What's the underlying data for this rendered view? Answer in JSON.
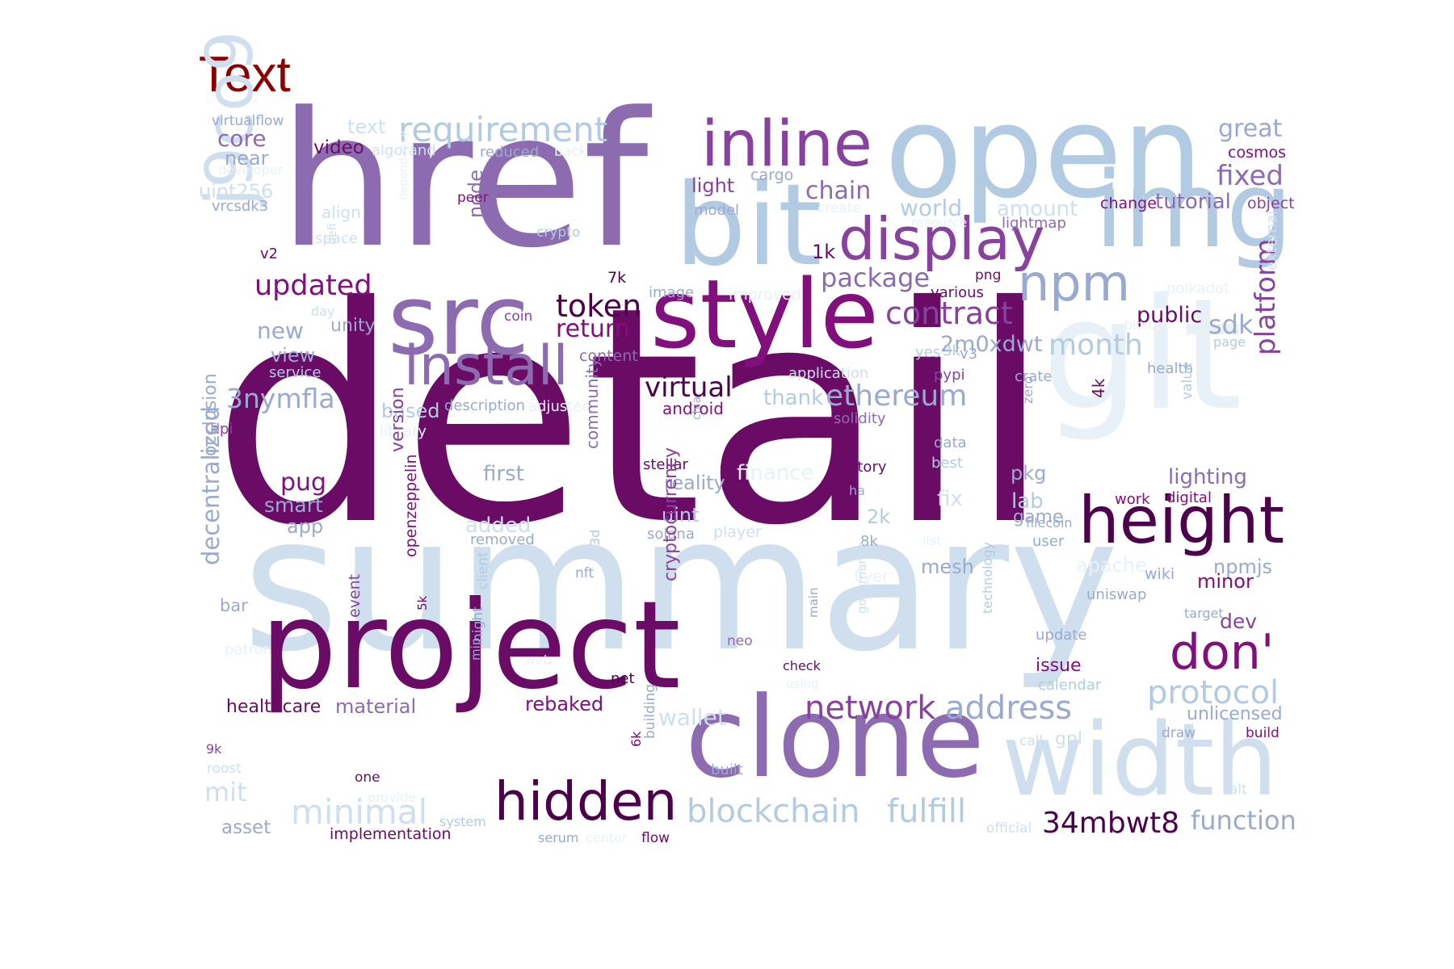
{
  "title": "Text",
  "palette": {
    "title": "#8b0000",
    "c1": "#e8f1f8",
    "c2": "#cfdfee",
    "c3": "#b3cbe2",
    "c4": "#9aa9d0",
    "c5": "#8c6bb1",
    "c6": "#88419d",
    "c7": "#810f7c",
    "c8": "#6a0c66",
    "c9": "#4d004b"
  },
  "words": [
    {
      "text": "detail",
      "color": "c8"
    },
    {
      "text": "summary",
      "color": "c2"
    },
    {
      "text": "href",
      "color": "c5"
    },
    {
      "text": "open",
      "color": "c3"
    },
    {
      "text": "git",
      "color": "c1"
    },
    {
      "text": "img",
      "color": "c3"
    },
    {
      "text": "project",
      "color": "c8"
    },
    {
      "text": "clone",
      "color": "c5"
    },
    {
      "text": "width",
      "color": "c2"
    },
    {
      "text": "style",
      "color": "c7"
    },
    {
      "text": "bit",
      "color": "c3"
    },
    {
      "text": "inline",
      "color": "c6"
    },
    {
      "text": "src",
      "color": "c5"
    },
    {
      "text": "display",
      "color": "c6"
    },
    {
      "text": "height",
      "color": "c9"
    },
    {
      "text": "install",
      "color": "c5"
    },
    {
      "text": "hidden",
      "color": "c9"
    },
    {
      "text": "requirement",
      "color": "c3"
    },
    {
      "text": "j9co9",
      "color": "c2"
    },
    {
      "text": "npm",
      "color": "c4"
    },
    {
      "text": "don'",
      "color": "c7"
    },
    {
      "text": "network",
      "color": "c6"
    },
    {
      "text": "address",
      "color": "c4"
    },
    {
      "text": "protocol",
      "color": "c3"
    },
    {
      "text": "blockchain",
      "color": "c3"
    },
    {
      "text": "fulfill",
      "color": "c3"
    },
    {
      "text": "34mbwt8",
      "color": "c9"
    },
    {
      "text": "function",
      "color": "c4"
    },
    {
      "text": "minimal",
      "color": "c2"
    },
    {
      "text": "contract",
      "color": "c6"
    },
    {
      "text": "ethereum",
      "color": "c4"
    },
    {
      "text": "token",
      "color": "c9"
    },
    {
      "text": "return",
      "color": "c7"
    },
    {
      "text": "updated",
      "color": "c7"
    },
    {
      "text": "package",
      "color": "c5"
    },
    {
      "text": "month",
      "color": "c3"
    },
    {
      "text": "platform",
      "color": "c6"
    },
    {
      "text": "fixed",
      "color": "c5"
    },
    {
      "text": "great",
      "color": "c4"
    },
    {
      "text": "tutorial",
      "color": "c5"
    },
    {
      "text": "sdk",
      "color": "c4"
    },
    {
      "text": "public",
      "color": "c8"
    },
    {
      "text": "virtual",
      "color": "c9"
    },
    {
      "text": "android",
      "color": "c7"
    },
    {
      "text": "core",
      "color": "c5"
    },
    {
      "text": "near",
      "color": "c4"
    },
    {
      "text": "virtualflow",
      "color": "c4"
    },
    {
      "text": "video",
      "color": "c8"
    },
    {
      "text": "algorand",
      "color": "c2"
    },
    {
      "text": "reduced",
      "color": "c4"
    },
    {
      "text": "back",
      "color": "c1"
    },
    {
      "text": "text",
      "color": "c2"
    },
    {
      "text": "developer",
      "color": "c1"
    },
    {
      "text": "uint256",
      "color": "c2"
    },
    {
      "text": "vrcsdk3",
      "color": "c4"
    },
    {
      "text": "align",
      "color": "c2"
    },
    {
      "text": "space",
      "color": "c2"
    },
    {
      "text": "v2",
      "color": "c8"
    },
    {
      "text": "defi",
      "color": "c2"
    },
    {
      "text": "dependency",
      "color": "c1"
    },
    {
      "text": "node",
      "color": "c5"
    },
    {
      "text": "peer",
      "color": "c7"
    },
    {
      "text": "crypto",
      "color": "c3"
    },
    {
      "text": "light",
      "color": "c6"
    },
    {
      "text": "cargo",
      "color": "c4"
    },
    {
      "text": "chain",
      "color": "c5"
    },
    {
      "text": "model",
      "color": "c4"
    },
    {
      "text": "create",
      "color": "c1"
    },
    {
      "text": "world",
      "color": "c3"
    },
    {
      "text": "amount",
      "color": "c2"
    },
    {
      "text": "resource",
      "color": "c1"
    },
    {
      "text": "lightmap",
      "color": "c5"
    },
    {
      "text": "change",
      "color": "c7"
    },
    {
      "text": "object",
      "color": "c6"
    },
    {
      "text": "cosmos",
      "color": "c7"
    },
    {
      "text": "1k",
      "color": "c8"
    },
    {
      "text": "7k",
      "color": "c9"
    },
    {
      "text": "png",
      "color": "c8"
    },
    {
      "text": "image",
      "color": "c4"
    },
    {
      "text": "improved",
      "color": "c1"
    },
    {
      "text": "various",
      "color": "c8"
    },
    {
      "text": "polkadot",
      "color": "c1"
    },
    {
      "text": "coin",
      "color": "c6"
    },
    {
      "text": "day",
      "color": "c2"
    },
    {
      "text": "unity",
      "color": "c4"
    },
    {
      "text": "new",
      "color": "c4"
    },
    {
      "text": "view",
      "color": "c4"
    },
    {
      "text": "service",
      "color": "c3"
    },
    {
      "text": "content",
      "color": "c5"
    },
    {
      "text": "2m0xdwt",
      "color": "c4"
    },
    {
      "text": "yes",
      "color": "c3"
    },
    {
      "text": "3k",
      "color": "c3"
    },
    {
      "text": "v3",
      "color": "c4"
    },
    {
      "text": "bitcoin",
      "color": "c1"
    },
    {
      "text": "page",
      "color": "c3"
    },
    {
      "text": "external",
      "color": "c2"
    },
    {
      "text": "application",
      "color": "c2"
    },
    {
      "text": "pypi",
      "color": "c6"
    },
    {
      "text": "crate",
      "color": "c4"
    },
    {
      "text": "health",
      "color": "c4"
    },
    {
      "text": "3nymfla",
      "color": "c4"
    },
    {
      "text": "based",
      "color": "c3"
    },
    {
      "text": "description",
      "color": "c4"
    },
    {
      "text": "adjusted",
      "color": "c1"
    },
    {
      "text": "thank",
      "color": "c3"
    },
    {
      "text": "solidity",
      "color": "c5"
    },
    {
      "text": "zero",
      "color": "c4"
    },
    {
      "text": "4k",
      "color": "c8"
    },
    {
      "text": "value",
      "color": "c3"
    },
    {
      "text": "api",
      "color": "c6"
    },
    {
      "text": "library",
      "color": "c1"
    },
    {
      "text": "chia",
      "color": "c4"
    },
    {
      "text": "data",
      "color": "c4"
    },
    {
      "text": "best",
      "color": "c3"
    },
    {
      "text": "occlusion",
      "color": "c4"
    },
    {
      "text": "version",
      "color": "c6"
    },
    {
      "text": "pug",
      "color": "c7"
    },
    {
      "text": "smart",
      "color": "c4"
    },
    {
      "text": "app",
      "color": "c4"
    },
    {
      "text": "first",
      "color": "c4"
    },
    {
      "text": "stellar",
      "color": "c8"
    },
    {
      "text": "community",
      "color": "c5"
    },
    {
      "text": "reality",
      "color": "c4"
    },
    {
      "text": "finance",
      "color": "c1"
    },
    {
      "text": "story",
      "color": "c8"
    },
    {
      "text": "ha",
      "color": "c4"
    },
    {
      "text": "pkg",
      "color": "c4"
    },
    {
      "text": "lab",
      "color": "c3"
    },
    {
      "text": "game",
      "color": "c4"
    },
    {
      "text": "lighting",
      "color": "c5"
    },
    {
      "text": "work",
      "color": "c7"
    },
    {
      "text": "digital",
      "color": "c7"
    },
    {
      "text": "fix",
      "color": "c2"
    },
    {
      "text": "filecoin",
      "color": "c4"
    },
    {
      "text": "user",
      "color": "c4"
    },
    {
      "text": "added",
      "color": "c2"
    },
    {
      "text": "removed",
      "color": "c4"
    },
    {
      "text": "uint",
      "color": "c3"
    },
    {
      "text": "solana",
      "color": "c4"
    },
    {
      "text": "player",
      "color": "c2"
    },
    {
      "text": "2k",
      "color": "c3"
    },
    {
      "text": "8k",
      "color": "c4"
    },
    {
      "text": "list",
      "color": "c1"
    },
    {
      "text": "mesh",
      "color": "c4"
    },
    {
      "text": "apache",
      "color": "c1"
    },
    {
      "text": "npmjs",
      "color": "c4"
    },
    {
      "text": "wiki",
      "color": "c4"
    },
    {
      "text": "minor",
      "color": "c7"
    },
    {
      "text": "uniswap",
      "color": "c4"
    },
    {
      "text": "target",
      "color": "c4"
    },
    {
      "text": "dev",
      "color": "c6"
    },
    {
      "text": "3d",
      "color": "c3"
    },
    {
      "text": "nft",
      "color": "c4"
    },
    {
      "text": "flyer",
      "color": "c1"
    },
    {
      "text": "openzeppelin",
      "color": "c7"
    },
    {
      "text": "5k",
      "color": "c8"
    },
    {
      "text": "client",
      "color": "c3"
    },
    {
      "text": "cryptocurrency",
      "color": "c6"
    },
    {
      "text": "neo",
      "color": "c5"
    },
    {
      "text": "main",
      "color": "c4"
    },
    {
      "text": "governance",
      "color": "c2"
    },
    {
      "text": "technology",
      "color": "c3"
    },
    {
      "text": "update",
      "color": "c4"
    },
    {
      "text": "issue",
      "color": "c7"
    },
    {
      "text": "calendar",
      "color": "c3"
    },
    {
      "text": "decentralized",
      "color": "c4"
    },
    {
      "text": "bar",
      "color": "c4"
    },
    {
      "text": "patron",
      "color": "c1"
    },
    {
      "text": "event",
      "color": "c6"
    },
    {
      "text": "night",
      "color": "c4"
    },
    {
      "text": "mip",
      "color": "c4"
    },
    {
      "text": "web",
      "color": "c1"
    },
    {
      "text": "check",
      "color": "c8"
    },
    {
      "text": "using",
      "color": "c1"
    },
    {
      "text": "net",
      "color": "c9"
    },
    {
      "text": "healthcare",
      "color": "c8"
    },
    {
      "text": "material",
      "color": "c5"
    },
    {
      "text": "rebaked",
      "color": "c7"
    },
    {
      "text": "wallet",
      "color": "c2"
    },
    {
      "text": "unlicensed",
      "color": "c4"
    },
    {
      "text": "draw",
      "color": "c4"
    },
    {
      "text": "build",
      "color": "c7"
    },
    {
      "text": "call",
      "color": "c2"
    },
    {
      "text": "gpl",
      "color": "c2"
    },
    {
      "text": "9k",
      "color": "c6"
    },
    {
      "text": "roost",
      "color": "c2"
    },
    {
      "text": "mit",
      "color": "c2"
    },
    {
      "text": "one",
      "color": "c8"
    },
    {
      "text": "provide",
      "color": "c1"
    },
    {
      "text": "6k",
      "color": "c8"
    },
    {
      "text": "building",
      "color": "c4"
    },
    {
      "text": "built",
      "color": "c4"
    },
    {
      "text": "alt",
      "color": "c2"
    },
    {
      "text": "asset",
      "color": "c4"
    },
    {
      "text": "implementation",
      "color": "c8"
    },
    {
      "text": "system",
      "color": "c3"
    },
    {
      "text": "serum",
      "color": "c4"
    },
    {
      "text": "center",
      "color": "c1"
    },
    {
      "text": "flow",
      "color": "c8"
    },
    {
      "text": "official",
      "color": "c2"
    }
  ]
}
